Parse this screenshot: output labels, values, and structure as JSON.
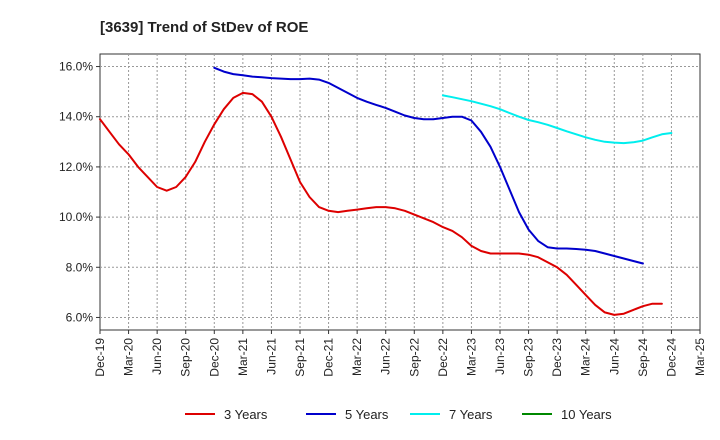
{
  "chart_data": {
    "type": "line",
    "title": "[3639]  Trend of StDev of ROE",
    "xlabel": "",
    "ylabel": "",
    "ylim": [
      5.5,
      16.5
    ],
    "yticks": [
      6.0,
      8.0,
      10.0,
      12.0,
      14.0,
      16.0
    ],
    "ytick_labels": [
      "6.0%",
      "8.0%",
      "10.0%",
      "12.0%",
      "14.0%",
      "16.0%"
    ],
    "x_range": [
      "Dec-19",
      "Mar-25"
    ],
    "x_tick_labels": [
      "Dec-19",
      "Mar-20",
      "Jun-20",
      "Sep-20",
      "Dec-20",
      "Mar-21",
      "Jun-21",
      "Sep-21",
      "Dec-21",
      "Mar-22",
      "Jun-22",
      "Sep-22",
      "Dec-22",
      "Mar-23",
      "Jun-23",
      "Sep-23",
      "Dec-23",
      "Mar-24",
      "Jun-24",
      "Sep-24",
      "Dec-24",
      "Mar-25"
    ],
    "grid": true,
    "legend_position": "bottom",
    "series": [
      {
        "name": "3 Years",
        "color": "#dd0000",
        "points": [
          [
            "Dec-19",
            13.9
          ],
          [
            "Jan-20",
            13.4
          ],
          [
            "Feb-20",
            12.9
          ],
          [
            "Mar-20",
            12.5
          ],
          [
            "Apr-20",
            12.0
          ],
          [
            "May-20",
            11.6
          ],
          [
            "Jun-20",
            11.2
          ],
          [
            "Jul-20",
            11.05
          ],
          [
            "Aug-20",
            11.2
          ],
          [
            "Sep-20",
            11.6
          ],
          [
            "Oct-20",
            12.2
          ],
          [
            "Nov-20",
            13.0
          ],
          [
            "Dec-20",
            13.7
          ],
          [
            "Jan-21",
            14.3
          ],
          [
            "Feb-21",
            14.75
          ],
          [
            "Mar-21",
            14.95
          ],
          [
            "Apr-21",
            14.9
          ],
          [
            "May-21",
            14.6
          ],
          [
            "Jun-21",
            14.0
          ],
          [
            "Jul-21",
            13.2
          ],
          [
            "Aug-21",
            12.3
          ],
          [
            "Sep-21",
            11.4
          ],
          [
            "Oct-21",
            10.8
          ],
          [
            "Nov-21",
            10.4
          ],
          [
            "Dec-21",
            10.25
          ],
          [
            "Jan-22",
            10.2
          ],
          [
            "Feb-22",
            10.25
          ],
          [
            "Mar-22",
            10.3
          ],
          [
            "Apr-22",
            10.35
          ],
          [
            "May-22",
            10.4
          ],
          [
            "Jun-22",
            10.4
          ],
          [
            "Jul-22",
            10.35
          ],
          [
            "Aug-22",
            10.25
          ],
          [
            "Sep-22",
            10.1
          ],
          [
            "Oct-22",
            9.95
          ],
          [
            "Nov-22",
            9.8
          ],
          [
            "Dec-22",
            9.6
          ],
          [
            "Jan-23",
            9.45
          ],
          [
            "Feb-23",
            9.2
          ],
          [
            "Mar-23",
            8.85
          ],
          [
            "Apr-23",
            8.65
          ],
          [
            "May-23",
            8.55
          ],
          [
            "Jun-23",
            8.55
          ],
          [
            "Jul-23",
            8.55
          ],
          [
            "Aug-23",
            8.55
          ],
          [
            "Sep-23",
            8.5
          ],
          [
            "Oct-23",
            8.4
          ],
          [
            "Nov-23",
            8.2
          ],
          [
            "Dec-23",
            8.0
          ],
          [
            "Jan-24",
            7.7
          ],
          [
            "Feb-24",
            7.3
          ],
          [
            "Mar-24",
            6.9
          ],
          [
            "Apr-24",
            6.5
          ],
          [
            "May-24",
            6.2
          ],
          [
            "Jun-24",
            6.1
          ],
          [
            "Jul-24",
            6.15
          ],
          [
            "Aug-24",
            6.3
          ],
          [
            "Sep-24",
            6.45
          ],
          [
            "Oct-24",
            6.55
          ],
          [
            "Nov-24",
            6.55
          ]
        ]
      },
      {
        "name": "5 Years",
        "color": "#0000cc",
        "points": [
          [
            "Dec-20",
            15.95
          ],
          [
            "Jan-21",
            15.8
          ],
          [
            "Feb-21",
            15.7
          ],
          [
            "Mar-21",
            15.65
          ],
          [
            "Apr-21",
            15.6
          ],
          [
            "May-21",
            15.57
          ],
          [
            "Jun-21",
            15.54
          ],
          [
            "Jul-21",
            15.52
          ],
          [
            "Aug-21",
            15.5
          ],
          [
            "Sep-21",
            15.5
          ],
          [
            "Oct-21",
            15.52
          ],
          [
            "Nov-21",
            15.48
          ],
          [
            "Dec-21",
            15.35
          ],
          [
            "Jan-22",
            15.15
          ],
          [
            "Feb-22",
            14.95
          ],
          [
            "Mar-22",
            14.75
          ],
          [
            "Apr-22",
            14.6
          ],
          [
            "May-22",
            14.47
          ],
          [
            "Jun-22",
            14.35
          ],
          [
            "Jul-22",
            14.2
          ],
          [
            "Aug-22",
            14.05
          ],
          [
            "Sep-22",
            13.95
          ],
          [
            "Oct-22",
            13.9
          ],
          [
            "Nov-22",
            13.9
          ],
          [
            "Dec-22",
            13.95
          ],
          [
            "Jan-23",
            14.0
          ],
          [
            "Feb-23",
            14.0
          ],
          [
            "Mar-23",
            13.85
          ],
          [
            "Apr-23",
            13.4
          ],
          [
            "May-23",
            12.8
          ],
          [
            "Jun-23",
            12.0
          ],
          [
            "Jul-23",
            11.1
          ],
          [
            "Aug-23",
            10.2
          ],
          [
            "Sep-23",
            9.5
          ],
          [
            "Oct-23",
            9.05
          ],
          [
            "Nov-23",
            8.8
          ],
          [
            "Dec-23",
            8.75
          ],
          [
            "Jan-24",
            8.75
          ],
          [
            "Feb-24",
            8.73
          ],
          [
            "Mar-24",
            8.7
          ],
          [
            "Apr-24",
            8.65
          ],
          [
            "May-24",
            8.55
          ],
          [
            "Jun-24",
            8.45
          ],
          [
            "Jul-24",
            8.35
          ],
          [
            "Aug-24",
            8.25
          ],
          [
            "Sep-24",
            8.15
          ]
        ]
      },
      {
        "name": "7 Years",
        "color": "#00eeee",
        "points": [
          [
            "Dec-22",
            14.85
          ],
          [
            "Jan-23",
            14.78
          ],
          [
            "Feb-23",
            14.7
          ],
          [
            "Mar-23",
            14.62
          ],
          [
            "Apr-23",
            14.52
          ],
          [
            "May-23",
            14.42
          ],
          [
            "Jun-23",
            14.3
          ],
          [
            "Jul-23",
            14.15
          ],
          [
            "Aug-23",
            14.0
          ],
          [
            "Sep-23",
            13.87
          ],
          [
            "Oct-23",
            13.78
          ],
          [
            "Nov-23",
            13.68
          ],
          [
            "Dec-23",
            13.55
          ],
          [
            "Jan-24",
            13.42
          ],
          [
            "Feb-24",
            13.3
          ],
          [
            "Mar-24",
            13.18
          ],
          [
            "Apr-24",
            13.08
          ],
          [
            "May-24",
            13.0
          ],
          [
            "Jun-24",
            12.97
          ],
          [
            "Jul-24",
            12.95
          ],
          [
            "Aug-24",
            12.98
          ],
          [
            "Sep-24",
            13.05
          ],
          [
            "Oct-24",
            13.18
          ],
          [
            "Nov-24",
            13.3
          ],
          [
            "Dec-24",
            13.35
          ]
        ]
      },
      {
        "name": "10 Years",
        "color": "#008800",
        "points": []
      }
    ]
  }
}
